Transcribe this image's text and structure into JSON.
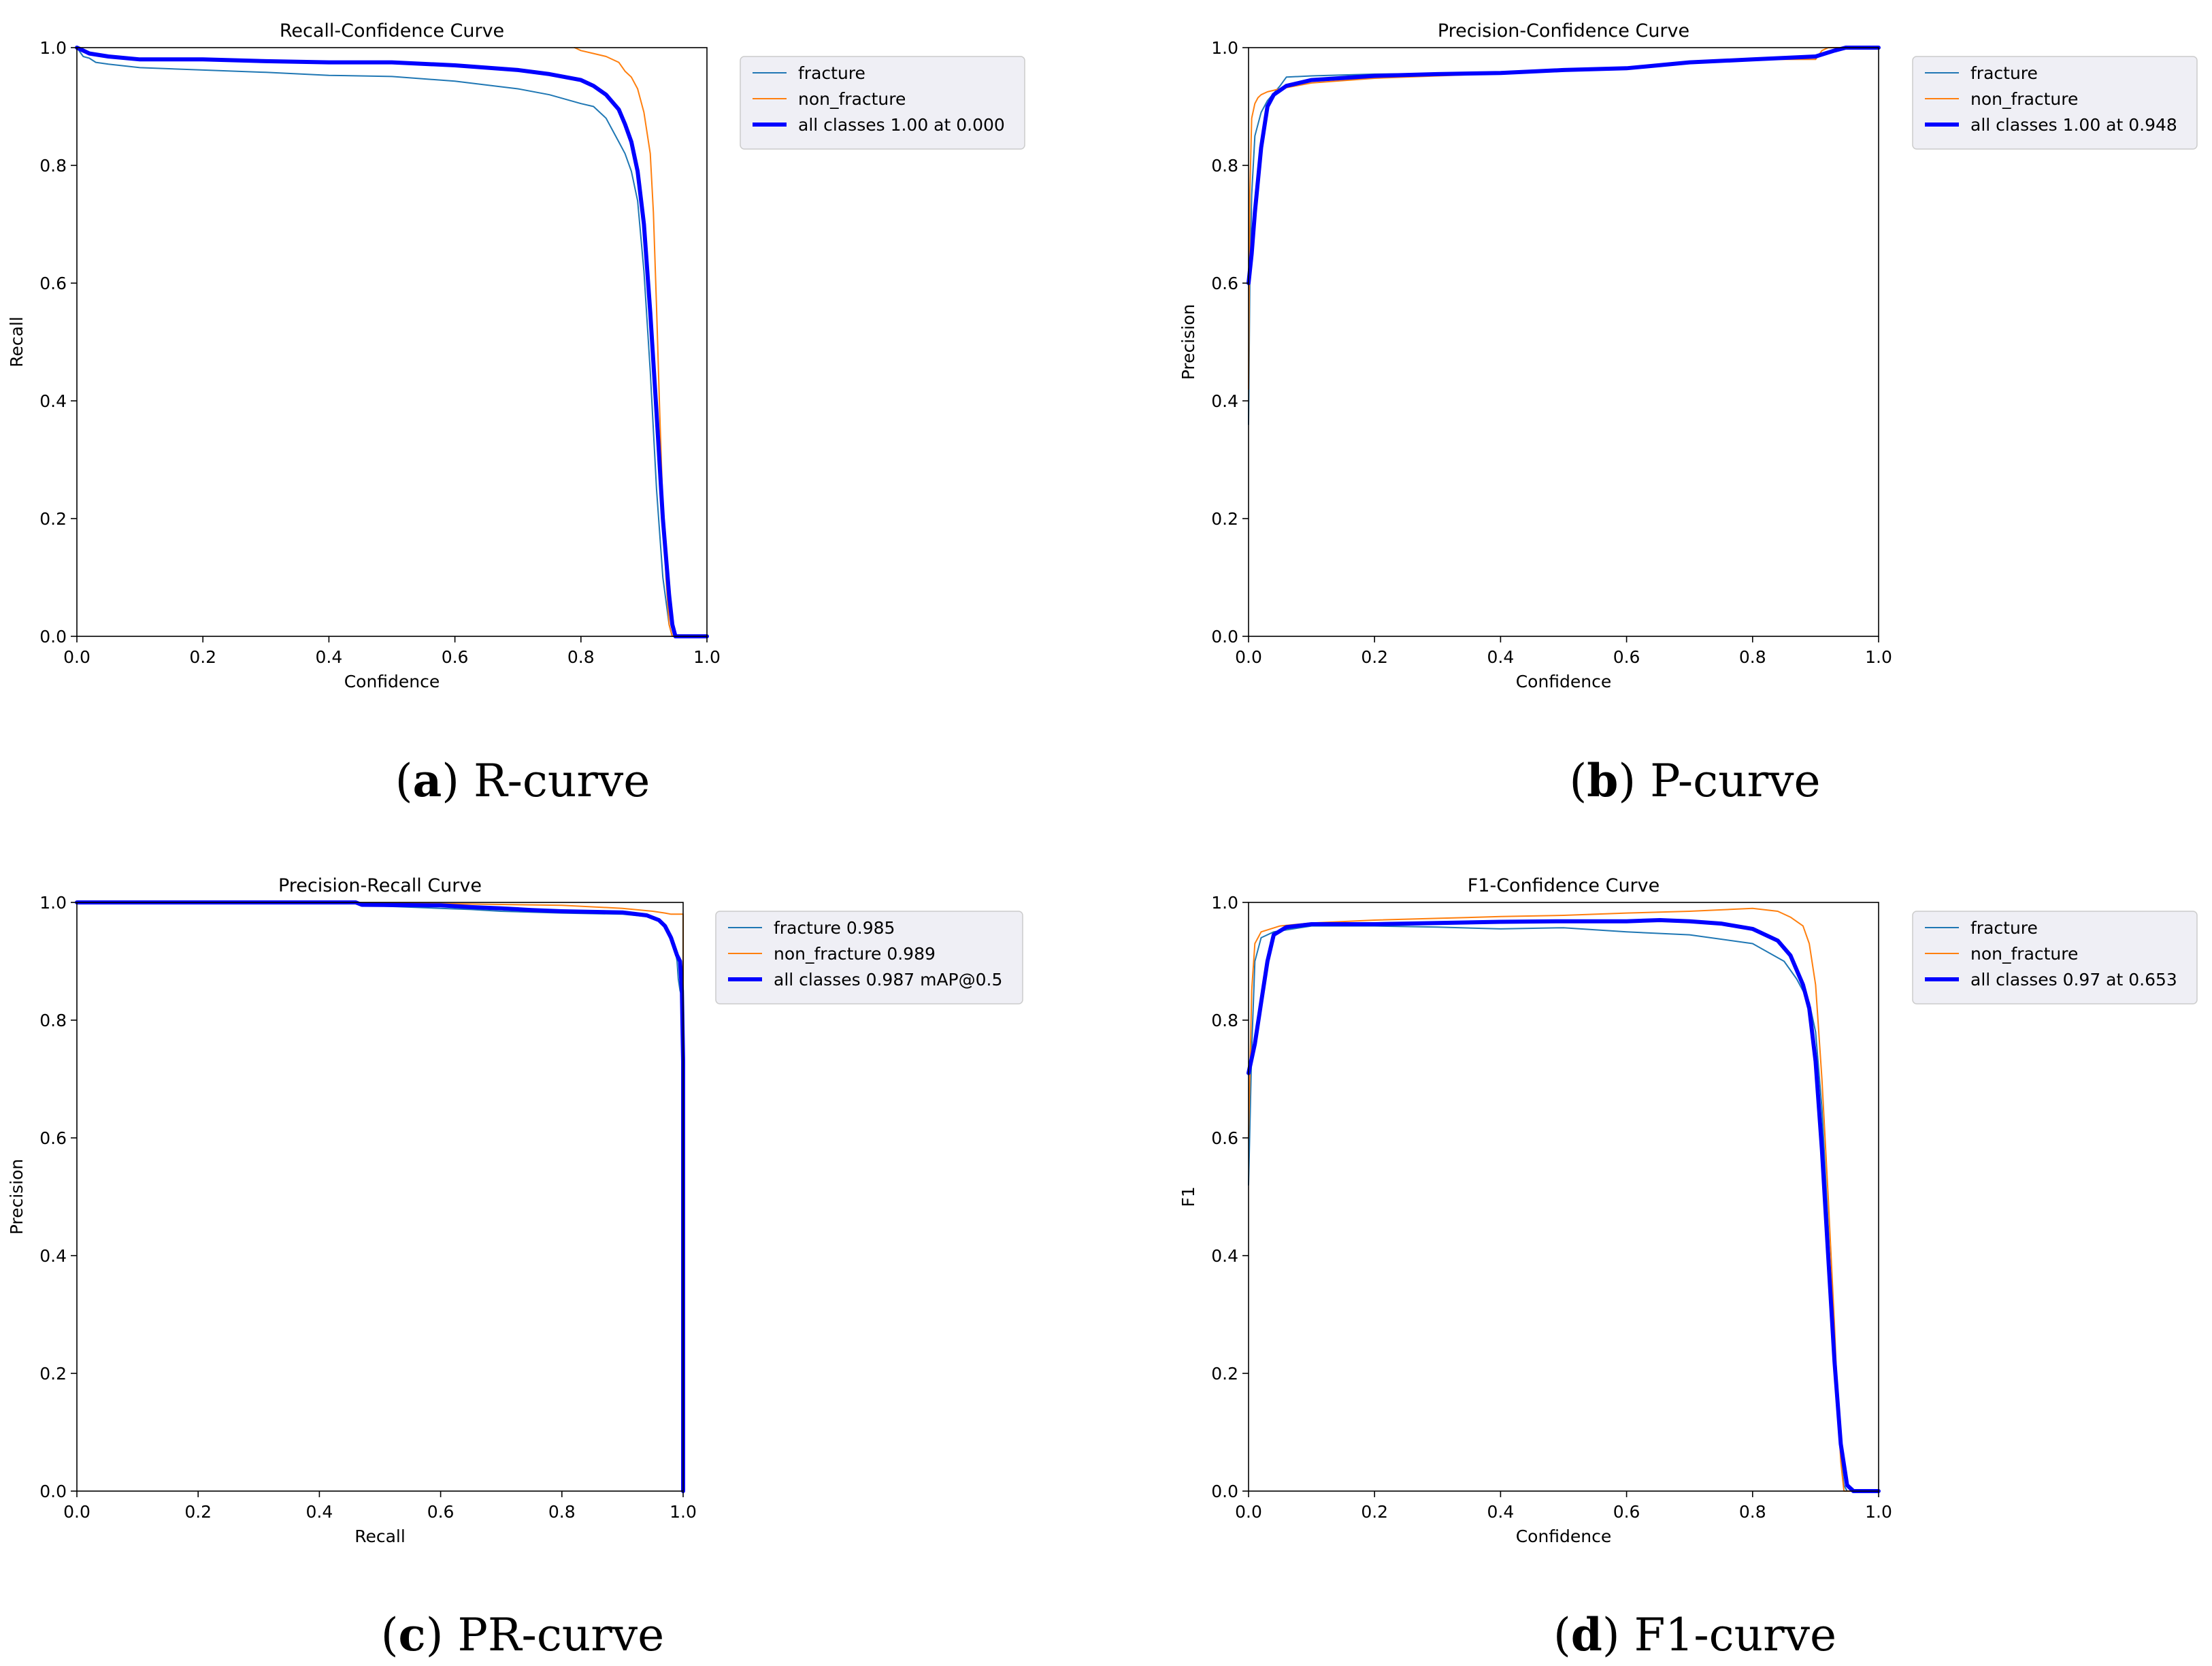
{
  "colors": {
    "fracture": "#1f77b4",
    "non_fracture": "#ff7f0e",
    "all_classes": "#0000ff",
    "legend_bg": "#efeff5",
    "legend_border": "#cccccc"
  },
  "captions": [
    {
      "letter": "a",
      "text": "R-curve"
    },
    {
      "letter": "b",
      "text": "P-curve"
    },
    {
      "letter": "c",
      "text": "PR-curve"
    },
    {
      "letter": "d",
      "text": "F1-curve"
    }
  ],
  "chart_data": [
    {
      "type": "line",
      "title": "Recall-Confidence Curve",
      "xlabel": "Confidence",
      "ylabel": "Recall",
      "xlim": [
        0,
        1
      ],
      "ylim": [
        0,
        1
      ],
      "xticks": [
        "0.0",
        "0.2",
        "0.4",
        "0.6",
        "0.8",
        "1.0"
      ],
      "yticks": [
        "0.0",
        "0.2",
        "0.4",
        "0.6",
        "0.8",
        "1.0"
      ],
      "legend_position": "outside-right",
      "series": [
        {
          "name": "fracture",
          "color_key": "fracture",
          "width": "thin",
          "x": [
            0,
            0.01,
            0.02,
            0.03,
            0.05,
            0.1,
            0.2,
            0.3,
            0.4,
            0.5,
            0.6,
            0.7,
            0.75,
            0.8,
            0.82,
            0.84,
            0.85,
            0.86,
            0.87,
            0.88,
            0.89,
            0.9,
            0.91,
            0.92,
            0.93,
            0.94,
            0.945,
            0.95
          ],
          "y": [
            1.0,
            0.985,
            0.982,
            0.975,
            0.972,
            0.966,
            0.962,
            0.958,
            0.953,
            0.951,
            0.943,
            0.93,
            0.92,
            0.905,
            0.9,
            0.88,
            0.86,
            0.84,
            0.82,
            0.79,
            0.74,
            0.62,
            0.45,
            0.25,
            0.1,
            0.02,
            0.0,
            0.0
          ]
        },
        {
          "name": "non_fracture",
          "color_key": "non_fracture",
          "width": "thin",
          "x": [
            0.79,
            0.8,
            0.82,
            0.84,
            0.86,
            0.87,
            0.88,
            0.89,
            0.9,
            0.91,
            0.915,
            0.92,
            0.925,
            0.93,
            0.935,
            0.94,
            0.945
          ],
          "y": [
            1.0,
            0.995,
            0.99,
            0.985,
            0.975,
            0.96,
            0.95,
            0.93,
            0.89,
            0.82,
            0.72,
            0.56,
            0.38,
            0.22,
            0.1,
            0.02,
            0.0
          ]
        },
        {
          "name": "all classes 1.00 at 0.000",
          "color_key": "all_classes",
          "width": "thick",
          "x": [
            0,
            0.02,
            0.05,
            0.1,
            0.2,
            0.3,
            0.4,
            0.5,
            0.6,
            0.7,
            0.75,
            0.8,
            0.82,
            0.84,
            0.86,
            0.87,
            0.88,
            0.89,
            0.9,
            0.91,
            0.92,
            0.93,
            0.94,
            0.945,
            0.95,
            0.96,
            1.0
          ],
          "y": [
            1.0,
            0.99,
            0.985,
            0.98,
            0.98,
            0.977,
            0.975,
            0.975,
            0.97,
            0.962,
            0.955,
            0.945,
            0.935,
            0.92,
            0.895,
            0.87,
            0.84,
            0.79,
            0.7,
            0.55,
            0.38,
            0.2,
            0.07,
            0.02,
            0.0,
            0.0,
            0.0
          ]
        }
      ]
    },
    {
      "type": "line",
      "title": "Precision-Confidence Curve",
      "xlabel": "Confidence",
      "ylabel": "Precision",
      "xlim": [
        0,
        1
      ],
      "ylim": [
        0,
        1
      ],
      "xticks": [
        "0.0",
        "0.2",
        "0.4",
        "0.6",
        "0.8",
        "1.0"
      ],
      "yticks": [
        "0.0",
        "0.2",
        "0.4",
        "0.6",
        "0.8",
        "1.0"
      ],
      "legend_position": "outside-right",
      "series": [
        {
          "name": "fracture",
          "color_key": "fracture",
          "width": "thin",
          "x": [
            0,
            0.002,
            0.005,
            0.01,
            0.02,
            0.03,
            0.05,
            0.06,
            0.1,
            0.2,
            0.3,
            0.4,
            0.5,
            0.6,
            0.7,
            0.8,
            0.9,
            0.92,
            0.94,
            1.0
          ],
          "y": [
            0.36,
            0.6,
            0.75,
            0.85,
            0.89,
            0.91,
            0.935,
            0.95,
            0.952,
            0.955,
            0.956,
            0.958,
            0.962,
            0.965,
            0.975,
            0.98,
            0.985,
            0.99,
            1.0,
            1.0
          ]
        },
        {
          "name": "non_fracture",
          "color_key": "non_fracture",
          "width": "thin",
          "x": [
            0,
            0.002,
            0.005,
            0.01,
            0.015,
            0.02,
            0.03,
            0.05,
            0.1,
            0.2,
            0.3,
            0.4,
            0.5,
            0.6,
            0.7,
            0.8,
            0.85,
            0.9,
            0.91,
            0.92,
            1.0
          ],
          "y": [
            0.42,
            0.75,
            0.88,
            0.905,
            0.915,
            0.92,
            0.925,
            0.93,
            0.94,
            0.948,
            0.952,
            0.956,
            0.96,
            0.965,
            0.975,
            0.98,
            0.98,
            0.98,
            0.995,
            1.0,
            1.0
          ]
        },
        {
          "name": "all classes 1.00 at 0.948",
          "color_key": "all_classes",
          "width": "thick",
          "x": [
            0,
            0.005,
            0.01,
            0.02,
            0.03,
            0.04,
            0.06,
            0.1,
            0.2,
            0.3,
            0.4,
            0.5,
            0.6,
            0.65,
            0.7,
            0.8,
            0.9,
            0.93,
            0.948,
            1.0
          ],
          "y": [
            0.6,
            0.65,
            0.72,
            0.83,
            0.9,
            0.92,
            0.935,
            0.945,
            0.952,
            0.955,
            0.957,
            0.962,
            0.965,
            0.97,
            0.975,
            0.98,
            0.985,
            0.995,
            1.0,
            1.0
          ]
        }
      ]
    },
    {
      "type": "line",
      "title": "Precision-Recall Curve",
      "xlabel": "Recall",
      "ylabel": "Precision",
      "xlim": [
        0,
        1
      ],
      "ylim": [
        0,
        1
      ],
      "xticks": [
        "0.0",
        "0.2",
        "0.4",
        "0.6",
        "0.8",
        "1.0"
      ],
      "yticks": [
        "0.0",
        "0.2",
        "0.4",
        "0.6",
        "0.8",
        "1.0"
      ],
      "legend_position": "outside-right",
      "series": [
        {
          "name": "fracture 0.985",
          "color_key": "fracture",
          "width": "thin",
          "x": [
            0,
            0.45,
            0.47,
            0.6,
            0.65,
            0.7,
            0.8,
            0.9,
            0.95,
            0.96,
            0.97,
            0.98,
            0.985,
            0.99,
            0.992,
            0.995,
            0.998,
            1.0,
            1.0
          ],
          "y": [
            1.0,
            1.0,
            0.995,
            0.99,
            0.988,
            0.985,
            0.982,
            0.98,
            0.975,
            0.97,
            0.96,
            0.945,
            0.93,
            0.9,
            0.87,
            0.85,
            0.84,
            0.7,
            0.0
          ]
        },
        {
          "name": "non_fracture 0.989",
          "color_key": "non_fracture",
          "width": "thin",
          "x": [
            0,
            0.6,
            0.8,
            0.9,
            0.95,
            0.97,
            0.98,
            0.99,
            1.0,
            1.0
          ],
          "y": [
            1.0,
            0.998,
            0.995,
            0.99,
            0.985,
            0.982,
            0.98,
            0.98,
            0.98,
            0.0
          ]
        },
        {
          "name": "all classes 0.987 mAP@0.5",
          "color_key": "all_classes",
          "width": "thick",
          "x": [
            0,
            0.46,
            0.47,
            0.6,
            0.65,
            0.7,
            0.75,
            0.8,
            0.9,
            0.94,
            0.96,
            0.97,
            0.98,
            0.99,
            0.995,
            0.998,
            1.0,
            1.0
          ],
          "y": [
            1.0,
            1.0,
            0.996,
            0.995,
            0.992,
            0.99,
            0.987,
            0.985,
            0.983,
            0.978,
            0.97,
            0.96,
            0.94,
            0.91,
            0.9,
            0.85,
            0.73,
            0.0
          ]
        }
      ]
    },
    {
      "type": "line",
      "title": "F1-Confidence Curve",
      "xlabel": "Confidence",
      "ylabel": "F1",
      "xlim": [
        0,
        1
      ],
      "ylim": [
        0,
        1
      ],
      "xticks": [
        "0.0",
        "0.2",
        "0.4",
        "0.6",
        "0.8",
        "1.0"
      ],
      "yticks": [
        "0.0",
        "0.2",
        "0.4",
        "0.6",
        "0.8",
        "1.0"
      ],
      "legend_position": "outside-right",
      "series": [
        {
          "name": "fracture",
          "color_key": "fracture",
          "width": "thin",
          "x": [
            0,
            0.005,
            0.01,
            0.02,
            0.04,
            0.1,
            0.2,
            0.3,
            0.4,
            0.5,
            0.6,
            0.7,
            0.8,
            0.85,
            0.87,
            0.89,
            0.9,
            0.91,
            0.92,
            0.93,
            0.94,
            0.945,
            0.95,
            0.96,
            1.0
          ],
          "y": [
            0.52,
            0.75,
            0.9,
            0.94,
            0.95,
            0.96,
            0.96,
            0.958,
            0.955,
            0.957,
            0.95,
            0.945,
            0.93,
            0.9,
            0.87,
            0.83,
            0.78,
            0.65,
            0.45,
            0.22,
            0.06,
            0.01,
            0.0,
            0.0,
            0.0
          ]
        },
        {
          "name": "non_fracture",
          "color_key": "non_fracture",
          "width": "thin",
          "x": [
            0,
            0.005,
            0.01,
            0.02,
            0.05,
            0.1,
            0.2,
            0.3,
            0.4,
            0.5,
            0.6,
            0.7,
            0.8,
            0.84,
            0.86,
            0.88,
            0.89,
            0.9,
            0.91,
            0.92,
            0.93,
            0.935,
            0.94,
            0.945,
            1.0
          ],
          "y": [
            0.6,
            0.85,
            0.93,
            0.95,
            0.96,
            0.965,
            0.97,
            0.973,
            0.976,
            0.978,
            0.982,
            0.985,
            0.99,
            0.985,
            0.975,
            0.96,
            0.93,
            0.86,
            0.7,
            0.5,
            0.28,
            0.15,
            0.05,
            0.0,
            0.0
          ]
        },
        {
          "name": "all classes 0.97 at 0.653",
          "color_key": "all_classes",
          "width": "thick",
          "x": [
            0,
            0.01,
            0.02,
            0.03,
            0.04,
            0.06,
            0.1,
            0.2,
            0.3,
            0.4,
            0.5,
            0.6,
            0.653,
            0.7,
            0.75,
            0.8,
            0.84,
            0.86,
            0.88,
            0.89,
            0.9,
            0.91,
            0.92,
            0.93,
            0.94,
            0.95,
            0.96,
            1.0
          ],
          "y": [
            0.71,
            0.76,
            0.83,
            0.9,
            0.945,
            0.958,
            0.963,
            0.963,
            0.965,
            0.967,
            0.968,
            0.968,
            0.97,
            0.968,
            0.964,
            0.955,
            0.935,
            0.91,
            0.86,
            0.82,
            0.73,
            0.58,
            0.4,
            0.22,
            0.08,
            0.01,
            0.0,
            0.0
          ]
        }
      ]
    }
  ]
}
